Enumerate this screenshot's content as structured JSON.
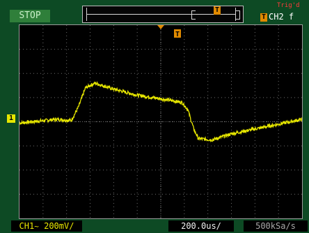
{
  "status": {
    "label": "STOP",
    "color": "#2f7f3a"
  },
  "trigger_bar": {
    "marker_icon": "T-marker"
  },
  "trigger": {
    "source": "CH2",
    "slope_symbol": "f",
    "state": "Trig'd",
    "marker_color": "#e08a00"
  },
  "display": {
    "grid_divisions_x": 12,
    "grid_divisions_y": 8,
    "trigger_time_marker": "T",
    "ch1_ground_marker": "1",
    "trace_color": "#e6e600",
    "grid_color": "#6f6f6f"
  },
  "waveform": {
    "description_points_div": [
      [
        0.0,
        -0.05
      ],
      [
        1.6,
        0.1
      ],
      [
        2.2,
        0.05
      ],
      [
        2.5,
        0.6
      ],
      [
        2.8,
        1.4
      ],
      [
        3.2,
        1.6
      ],
      [
        4.0,
        1.35
      ],
      [
        5.0,
        1.1
      ],
      [
        6.0,
        0.95
      ],
      [
        6.9,
        0.8
      ],
      [
        7.15,
        0.5
      ],
      [
        7.4,
        -0.3
      ],
      [
        7.6,
        -0.7
      ],
      [
        8.2,
        -0.75
      ],
      [
        9.0,
        -0.5
      ],
      [
        10.0,
        -0.3
      ],
      [
        11.0,
        -0.1
      ],
      [
        12.0,
        0.1
      ]
    ]
  },
  "bottom": {
    "ch1_label": "CH1",
    "coupling": "~",
    "ch1_scale": "200mV/",
    "timebase": "200.0us/",
    "sample_rate": "500kSa/s"
  }
}
